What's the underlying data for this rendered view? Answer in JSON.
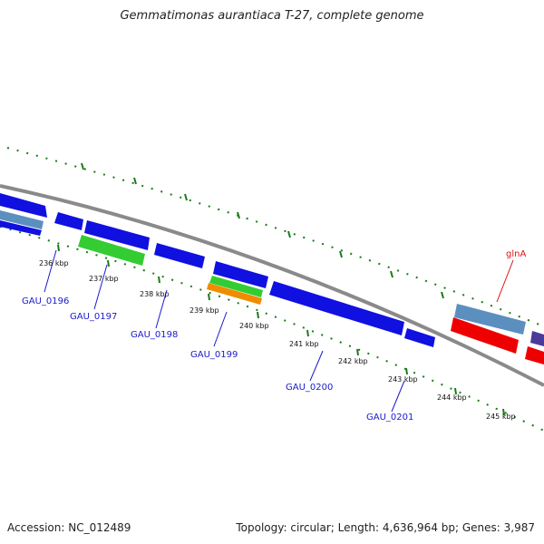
{
  "title": "Gemmatimonas aurantiaca T-27, complete genome",
  "footer": {
    "accession": "Accession: NC_012489",
    "summary": "Topology: circular; Length: 4,636,964 bp; Genes: 3,987"
  },
  "kbp_labels": [
    "236 kbp",
    "237 kbp",
    "238 kbp",
    "239 kbp",
    "240 kbp",
    "241 kbp",
    "242 kbp",
    "243 kbp",
    "244 kbp",
    "245 kbp"
  ],
  "gene_labels": [
    "GAU_0196",
    "GAU_0197",
    "GAU_0198",
    "GAU_0199",
    "GAU_0200",
    "GAU_0201",
    "glnA"
  ],
  "colors": {
    "backbone": "#8a8a8a",
    "cds_blue": "#1010e0",
    "rrna_green": "#33cc33",
    "orange": "#f08c00",
    "steel_blue": "#5b8fc0",
    "red": "#ee0000",
    "tick_green": "#1a7a1a"
  }
}
